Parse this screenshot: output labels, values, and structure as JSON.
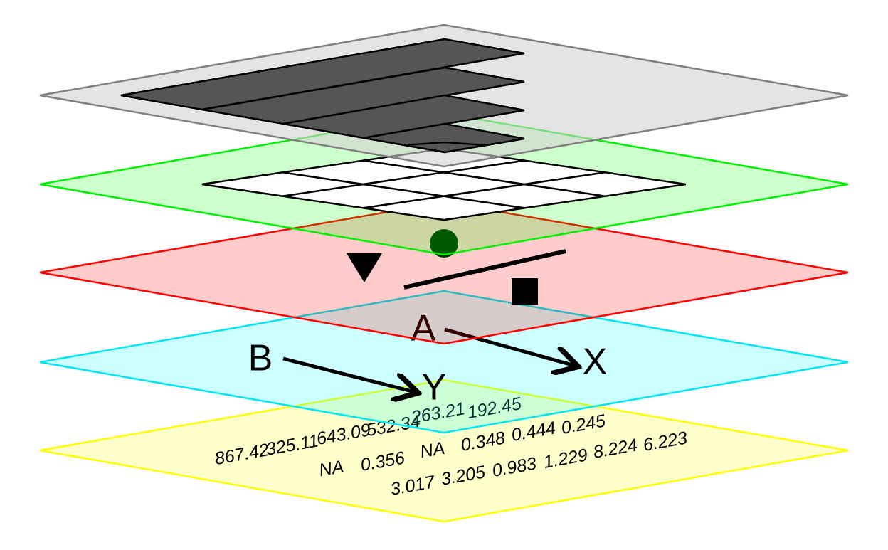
{
  "nodes": [
    {
      "label": "A"
    },
    {
      "label": "B"
    },
    {
      "label": "X"
    },
    {
      "label": "Y"
    }
  ],
  "numbers": [
    "192.45",
    "263.21",
    "532.34",
    "643.09",
    "325.11",
    "867.42",
    "0.245",
    "0.444",
    "0.348",
    "NA",
    "0.356",
    "NA",
    "6.223",
    "8.224",
    "1.229",
    "0.983",
    "3.205",
    "3.017"
  ]
}
